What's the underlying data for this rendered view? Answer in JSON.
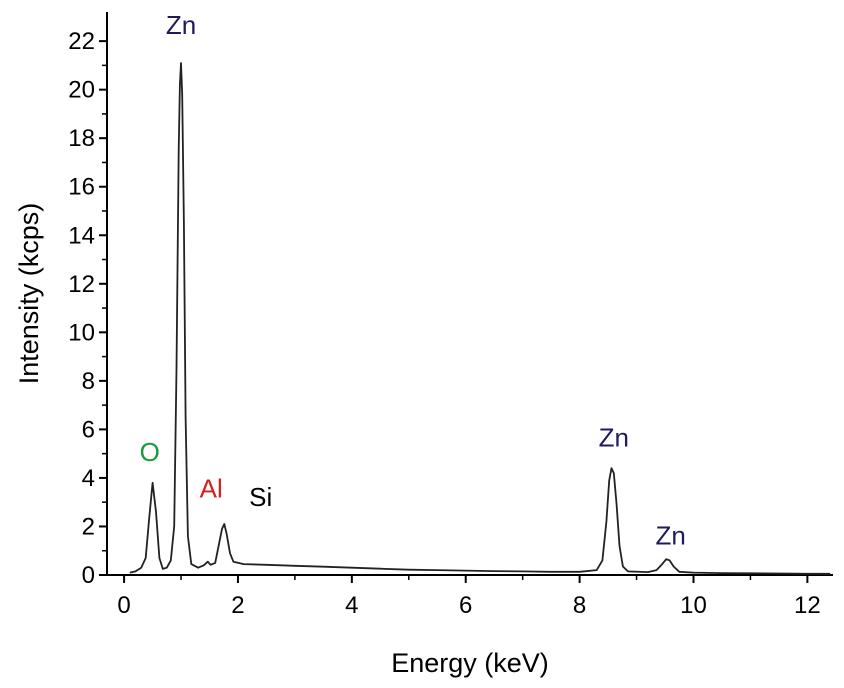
{
  "chart_data": {
    "type": "line",
    "title": "",
    "xlabel": "Energy (keV)",
    "ylabel": "Intensity (kcps)",
    "xlim": [
      -0.3,
      12.45
    ],
    "ylim": [
      0,
      23.2
    ],
    "x_ticks": [
      0,
      2,
      4,
      6,
      8,
      10,
      12
    ],
    "y_ticks": [
      0,
      2,
      4,
      6,
      8,
      10,
      12,
      14,
      16,
      18,
      20,
      22
    ],
    "grid": false,
    "legend": "none",
    "line_color": "#222222",
    "series": [
      {
        "values": [
          [
            0.1,
            0.1
          ],
          [
            0.2,
            0.15
          ],
          [
            0.3,
            0.3
          ],
          [
            0.38,
            0.7
          ],
          [
            0.44,
            2.3
          ],
          [
            0.5,
            3.8
          ],
          [
            0.56,
            2.6
          ],
          [
            0.62,
            0.7
          ],
          [
            0.68,
            0.25
          ],
          [
            0.75,
            0.3
          ],
          [
            0.82,
            0.6
          ],
          [
            0.88,
            2.0
          ],
          [
            0.92,
            8.5
          ],
          [
            0.96,
            17.5
          ],
          [
            0.98,
            20.2
          ],
          [
            1.0,
            21.1
          ],
          [
            1.02,
            19.8
          ],
          [
            1.05,
            14.5
          ],
          [
            1.08,
            6.5
          ],
          [
            1.12,
            1.6
          ],
          [
            1.18,
            0.45
          ],
          [
            1.3,
            0.3
          ],
          [
            1.4,
            0.4
          ],
          [
            1.47,
            0.55
          ],
          [
            1.52,
            0.42
          ],
          [
            1.6,
            0.5
          ],
          [
            1.66,
            1.2
          ],
          [
            1.72,
            1.9
          ],
          [
            1.76,
            2.1
          ],
          [
            1.8,
            1.7
          ],
          [
            1.86,
            0.9
          ],
          [
            1.92,
            0.55
          ],
          [
            2.1,
            0.45
          ],
          [
            2.5,
            0.42
          ],
          [
            3.0,
            0.38
          ],
          [
            3.5,
            0.34
          ],
          [
            4.0,
            0.3
          ],
          [
            4.5,
            0.26
          ],
          [
            5.0,
            0.22
          ],
          [
            5.5,
            0.2
          ],
          [
            6.0,
            0.18
          ],
          [
            6.5,
            0.16
          ],
          [
            7.0,
            0.15
          ],
          [
            7.5,
            0.13
          ],
          [
            8.0,
            0.13
          ],
          [
            8.3,
            0.2
          ],
          [
            8.4,
            0.6
          ],
          [
            8.47,
            2.2
          ],
          [
            8.52,
            3.9
          ],
          [
            8.56,
            4.4
          ],
          [
            8.6,
            4.2
          ],
          [
            8.65,
            2.9
          ],
          [
            8.7,
            1.2
          ],
          [
            8.76,
            0.35
          ],
          [
            8.85,
            0.15
          ],
          [
            9.2,
            0.12
          ],
          [
            9.35,
            0.2
          ],
          [
            9.45,
            0.45
          ],
          [
            9.52,
            0.65
          ],
          [
            9.58,
            0.6
          ],
          [
            9.65,
            0.35
          ],
          [
            9.75,
            0.13
          ],
          [
            10.0,
            0.1
          ],
          [
            10.5,
            0.08
          ],
          [
            11.0,
            0.07
          ],
          [
            11.5,
            0.06
          ],
          [
            12.0,
            0.05
          ],
          [
            12.4,
            0.05
          ]
        ]
      }
    ],
    "annotations": [
      {
        "text": "Zn",
        "x": 1.0,
        "y": 22.3,
        "color": "#1f1a5e"
      },
      {
        "text": "O",
        "x": 0.45,
        "y": 4.7,
        "color": "#1a9a3a"
      },
      {
        "text": "Al",
        "x": 1.53,
        "y": 3.2,
        "color": "#d42020"
      },
      {
        "text": "Si",
        "x": 2.4,
        "y": 2.85,
        "color": "#000000"
      },
      {
        "text": "Zn",
        "x": 8.6,
        "y": 5.3,
        "color": "#1f1a5e"
      },
      {
        "text": "Zn",
        "x": 9.6,
        "y": 1.25,
        "color": "#1f1a5e"
      }
    ]
  }
}
